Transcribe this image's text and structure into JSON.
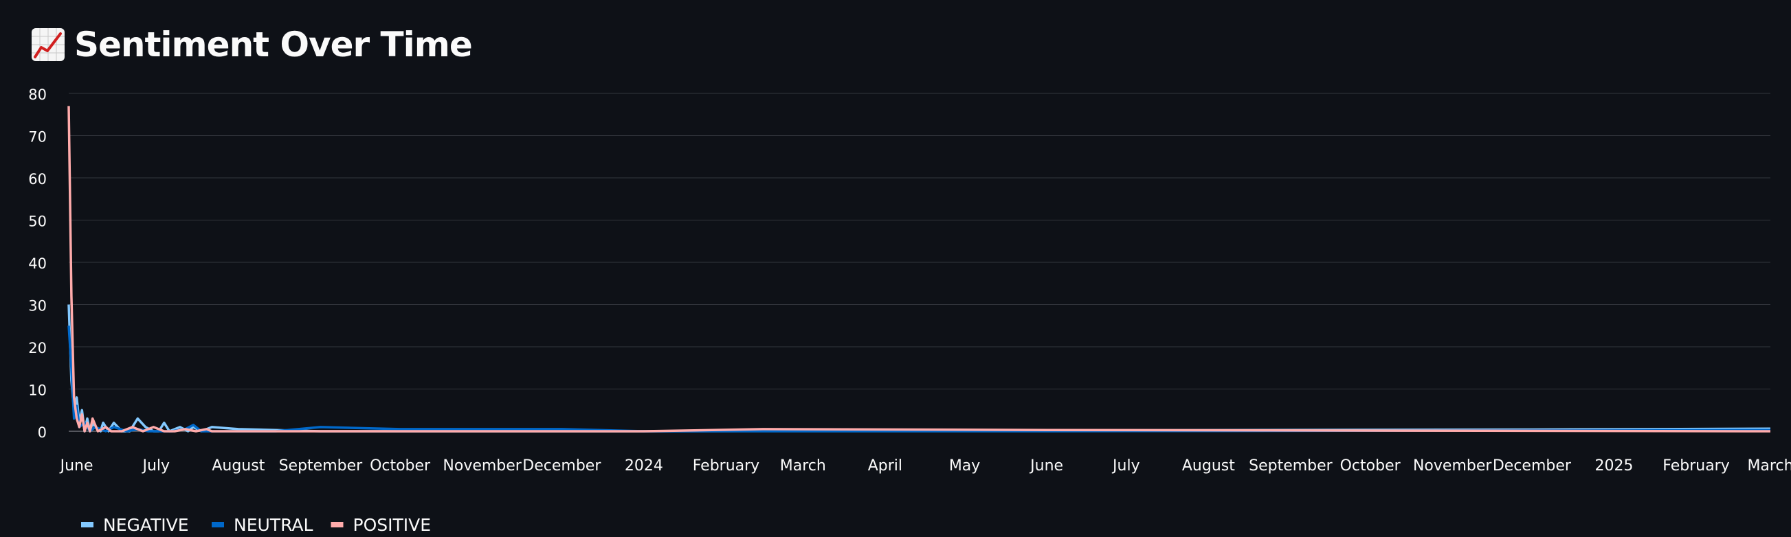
{
  "page": {
    "title": "Sentiment Over Time",
    "title_icon": "chart-increasing-icon"
  },
  "chart_data": {
    "type": "line",
    "title": "",
    "xlabel": "",
    "ylabel": "",
    "ylim": [
      0,
      80
    ],
    "yticks": [
      0,
      10,
      20,
      30,
      40,
      50,
      60,
      70,
      80
    ],
    "xlim": [
      "2023-05-29",
      "2025-03-01"
    ],
    "grid": true,
    "legend_position": "bottom-left",
    "x_tick_labels": [
      {
        "date": "2023-06-01",
        "label": "June"
      },
      {
        "date": "2023-07-01",
        "label": "July"
      },
      {
        "date": "2023-08-01",
        "label": "August"
      },
      {
        "date": "2023-09-01",
        "label": "September"
      },
      {
        "date": "2023-10-01",
        "label": "October"
      },
      {
        "date": "2023-11-01",
        "label": "November"
      },
      {
        "date": "2023-12-01",
        "label": "December"
      },
      {
        "date": "2024-01-01",
        "label": "2024"
      },
      {
        "date": "2024-02-01",
        "label": "February"
      },
      {
        "date": "2024-03-01",
        "label": "March"
      },
      {
        "date": "2024-04-01",
        "label": "April"
      },
      {
        "date": "2024-05-01",
        "label": "May"
      },
      {
        "date": "2024-06-01",
        "label": "June"
      },
      {
        "date": "2024-07-01",
        "label": "July"
      },
      {
        "date": "2024-08-01",
        "label": "August"
      },
      {
        "date": "2024-09-01",
        "label": "September"
      },
      {
        "date": "2024-10-01",
        "label": "October"
      },
      {
        "date": "2024-11-01",
        "label": "November"
      },
      {
        "date": "2024-12-01",
        "label": "December"
      },
      {
        "date": "2025-01-01",
        "label": "2025"
      },
      {
        "date": "2025-02-01",
        "label": "February"
      },
      {
        "date": "2025-03-01",
        "label": "March"
      }
    ],
    "series": [
      {
        "name": "NEGATIVE",
        "color": "#83c9ff",
        "points": [
          {
            "x": "2023-05-29",
            "y": 30
          },
          {
            "x": "2023-05-30",
            "y": 12
          },
          {
            "x": "2023-05-31",
            "y": 5
          },
          {
            "x": "2023-06-01",
            "y": 8
          },
          {
            "x": "2023-06-02",
            "y": 2
          },
          {
            "x": "2023-06-03",
            "y": 5
          },
          {
            "x": "2023-06-04",
            "y": 0
          },
          {
            "x": "2023-06-05",
            "y": 3
          },
          {
            "x": "2023-06-06",
            "y": 0
          },
          {
            "x": "2023-06-07",
            "y": 2
          },
          {
            "x": "2023-06-08",
            "y": 1
          },
          {
            "x": "2023-06-10",
            "y": 0
          },
          {
            "x": "2023-06-11",
            "y": 2
          },
          {
            "x": "2023-06-13",
            "y": 0
          },
          {
            "x": "2023-06-15",
            "y": 2
          },
          {
            "x": "2023-06-18",
            "y": 0
          },
          {
            "x": "2023-06-21",
            "y": 0
          },
          {
            "x": "2023-06-24",
            "y": 3
          },
          {
            "x": "2023-06-27",
            "y": 1
          },
          {
            "x": "2023-06-30",
            "y": 0
          },
          {
            "x": "2023-07-02",
            "y": 0
          },
          {
            "x": "2023-07-04",
            "y": 2
          },
          {
            "x": "2023-07-06",
            "y": 0
          },
          {
            "x": "2023-07-10",
            "y": 1
          },
          {
            "x": "2023-07-13",
            "y": 0
          },
          {
            "x": "2023-07-15",
            "y": 1
          },
          {
            "x": "2023-07-18",
            "y": 0
          },
          {
            "x": "2023-07-22",
            "y": 1
          },
          {
            "x": "2023-08-01",
            "y": 0.5
          },
          {
            "x": "2023-09-01",
            "y": 0
          },
          {
            "x": "2024-01-01",
            "y": 0
          },
          {
            "x": "2024-06-01",
            "y": 0.2
          },
          {
            "x": "2024-12-01",
            "y": 0.4
          },
          {
            "x": "2025-03-01",
            "y": 0.6
          }
        ]
      },
      {
        "name": "NEUTRAL",
        "color": "#0068c9",
        "points": [
          {
            "x": "2023-05-29",
            "y": 25
          },
          {
            "x": "2023-05-30",
            "y": 15
          },
          {
            "x": "2023-05-31",
            "y": 3
          },
          {
            "x": "2023-06-01",
            "y": 6
          },
          {
            "x": "2023-06-02",
            "y": 1
          },
          {
            "x": "2023-06-04",
            "y": 2
          },
          {
            "x": "2023-06-06",
            "y": 0
          },
          {
            "x": "2023-06-08",
            "y": 1
          },
          {
            "x": "2023-06-12",
            "y": 0
          },
          {
            "x": "2023-06-15",
            "y": 1
          },
          {
            "x": "2023-06-20",
            "y": 0
          },
          {
            "x": "2023-06-24",
            "y": 0.5
          },
          {
            "x": "2023-06-28",
            "y": 0
          },
          {
            "x": "2023-07-03",
            "y": 0
          },
          {
            "x": "2023-07-07",
            "y": 0
          },
          {
            "x": "2023-07-12",
            "y": 0.5
          },
          {
            "x": "2023-07-15",
            "y": 1.5
          },
          {
            "x": "2023-07-18",
            "y": 0
          },
          {
            "x": "2023-07-22",
            "y": 0
          },
          {
            "x": "2023-08-01",
            "y": 0
          },
          {
            "x": "2023-08-15",
            "y": 0
          },
          {
            "x": "2023-09-01",
            "y": 1
          },
          {
            "x": "2023-10-01",
            "y": 0.5
          },
          {
            "x": "2023-12-01",
            "y": 0.5
          },
          {
            "x": "2024-01-01",
            "y": 0
          },
          {
            "x": "2024-06-01",
            "y": 0
          },
          {
            "x": "2025-03-01",
            "y": 0.3
          }
        ]
      },
      {
        "name": "POSITIVE",
        "color": "#ffabab",
        "points": [
          {
            "x": "2023-05-29",
            "y": 77
          },
          {
            "x": "2023-05-30",
            "y": 32
          },
          {
            "x": "2023-05-31",
            "y": 8
          },
          {
            "x": "2023-06-01",
            "y": 3
          },
          {
            "x": "2023-06-02",
            "y": 1
          },
          {
            "x": "2023-06-03",
            "y": 4
          },
          {
            "x": "2023-06-04",
            "y": 0
          },
          {
            "x": "2023-06-05",
            "y": 2
          },
          {
            "x": "2023-06-06",
            "y": 0
          },
          {
            "x": "2023-06-07",
            "y": 3
          },
          {
            "x": "2023-06-09",
            "y": 0
          },
          {
            "x": "2023-06-12",
            "y": 1
          },
          {
            "x": "2023-06-14",
            "y": 0
          },
          {
            "x": "2023-06-18",
            "y": 0
          },
          {
            "x": "2023-06-22",
            "y": 1
          },
          {
            "x": "2023-06-26",
            "y": 0
          },
          {
            "x": "2023-06-30",
            "y": 1
          },
          {
            "x": "2023-07-04",
            "y": 0
          },
          {
            "x": "2023-07-08",
            "y": 0
          },
          {
            "x": "2023-07-12",
            "y": 0.5
          },
          {
            "x": "2023-07-16",
            "y": 0
          },
          {
            "x": "2023-07-20",
            "y": 0.5
          },
          {
            "x": "2023-07-22",
            "y": 0
          },
          {
            "x": "2023-09-01",
            "y": 0
          },
          {
            "x": "2024-01-01",
            "y": 0
          },
          {
            "x": "2024-02-15",
            "y": 0.5
          },
          {
            "x": "2024-06-01",
            "y": 0.3
          },
          {
            "x": "2025-03-01",
            "y": 0
          }
        ]
      }
    ]
  }
}
